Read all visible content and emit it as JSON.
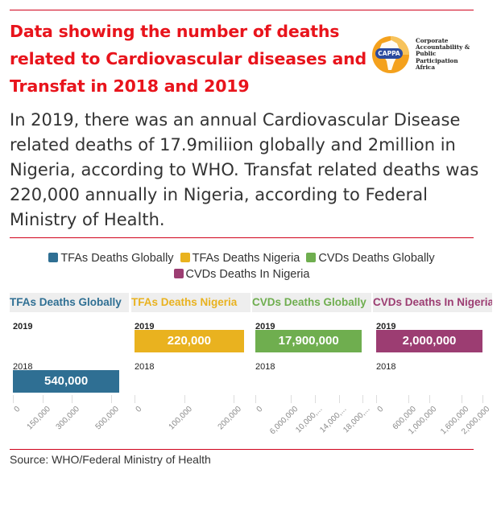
{
  "header": {
    "title": "Data showing the number of deaths related to Cardiovascular diseases and Transfat in 2018 and 2019",
    "logo_badge": "CAPPA",
    "logo_lines": [
      "Corporate",
      "Accountability &",
      "Public",
      "Participation",
      "Africa"
    ]
  },
  "description": "In 2019, there was an annual Cardiovascular Disease related deaths of 17.9miliion globally and 2million in Nigeria, according to WHO. Transfat related deaths was 220,000 annually in Nigeria, according to Federal Ministry of Health.",
  "legend": [
    {
      "label": "TFAs Deaths Globally",
      "color": "#2f6f93"
    },
    {
      "label": "TFAs Deaths Nigeria",
      "color": "#e9b21f"
    },
    {
      "label": "CVDs Deaths Globally",
      "color": "#6fae4f"
    },
    {
      "label": "CVDs Deaths In Nigeria",
      "color": "#9c3d72"
    }
  ],
  "chart_data": {
    "type": "bar",
    "categories": [
      "2019",
      "2018"
    ],
    "panels": [
      {
        "title": "TFAs Deaths Globally",
        "color": "#2f6f93",
        "values": [
          null,
          540000
        ],
        "labels": [
          "",
          "540,000"
        ],
        "bold": [
          true,
          false
        ],
        "xlim": [
          0,
          580000
        ],
        "ticks": [
          0,
          150000,
          300000,
          500000
        ],
        "tick_labels": [
          "0",
          "150,000",
          "300,000",
          "500,000"
        ]
      },
      {
        "title": "TFAs Deaths Nigeria",
        "color": "#e9b21f",
        "values": [
          220000,
          null
        ],
        "labels": [
          "220,000",
          ""
        ],
        "bold": [
          true,
          false
        ],
        "xlim": [
          0,
          230000
        ],
        "ticks": [
          0,
          100000,
          200000
        ],
        "tick_labels": [
          "0",
          "100,000",
          "200,000"
        ]
      },
      {
        "title": "CVDs Deaths Globally",
        "color": "#6fae4f",
        "values": [
          17900000,
          null
        ],
        "labels": [
          "17,900,000",
          ""
        ],
        "bold": [
          true,
          false
        ],
        "xlim": [
          0,
          19200000
        ],
        "ticks": [
          0,
          6000000,
          10000000,
          14000000,
          18000000
        ],
        "tick_labels": [
          "0",
          "6,000,000",
          "10,000,...",
          "14,000,...",
          "18,000,..."
        ]
      },
      {
        "title": "CVDs Deaths In Nigeria",
        "color": "#9c3d72",
        "values": [
          2000000,
          null
        ],
        "labels": [
          "2,000,000",
          ""
        ],
        "bold": [
          true,
          false
        ],
        "xlim": [
          0,
          2150000
        ],
        "ticks": [
          0,
          600000,
          1000000,
          1600000,
          2000000
        ],
        "tick_labels": [
          "0",
          "600,000",
          "1,000,000",
          "1,600,000",
          "2,000,000"
        ]
      }
    ]
  },
  "source": "Source: WHO/Federal Ministry of Health"
}
